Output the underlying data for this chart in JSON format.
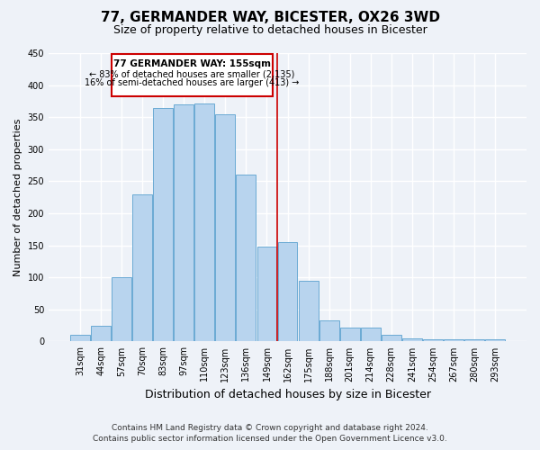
{
  "title": "77, GERMANDER WAY, BICESTER, OX26 3WD",
  "subtitle": "Size of property relative to detached houses in Bicester",
  "xlabel": "Distribution of detached houses by size in Bicester",
  "ylabel": "Number of detached properties",
  "bar_labels": [
    "31sqm",
    "44sqm",
    "57sqm",
    "70sqm",
    "83sqm",
    "97sqm",
    "110sqm",
    "123sqm",
    "136sqm",
    "149sqm",
    "162sqm",
    "175sqm",
    "188sqm",
    "201sqm",
    "214sqm",
    "228sqm",
    "241sqm",
    "254sqm",
    "267sqm",
    "280sqm",
    "293sqm"
  ],
  "bar_values": [
    10,
    25,
    100,
    230,
    365,
    370,
    372,
    355,
    260,
    148,
    155,
    95,
    33,
    22,
    22,
    10,
    5,
    3,
    3,
    3,
    3
  ],
  "bar_color": "#b8d4ee",
  "bar_edge_color": "#6aaad4",
  "vline_x": 9.5,
  "vline_color": "#cc0000",
  "annotation_title": "77 GERMANDER WAY: 155sqm",
  "annotation_line1": "← 83% of detached houses are smaller (2,135)",
  "annotation_line2": "16% of semi-detached houses are larger (413) →",
  "annotation_box_color": "#ffffff",
  "annotation_box_edge": "#cc0000",
  "ylim": [
    0,
    450
  ],
  "yticks": [
    0,
    50,
    100,
    150,
    200,
    250,
    300,
    350,
    400,
    450
  ],
  "footer1": "Contains HM Land Registry data © Crown copyright and database right 2024.",
  "footer2": "Contains public sector information licensed under the Open Government Licence v3.0.",
  "background_color": "#eef2f8",
  "grid_color": "#ffffff",
  "title_fontsize": 11,
  "subtitle_fontsize": 9,
  "axis_label_fontsize": 8,
  "tick_fontsize": 7,
  "footer_fontsize": 6.5
}
